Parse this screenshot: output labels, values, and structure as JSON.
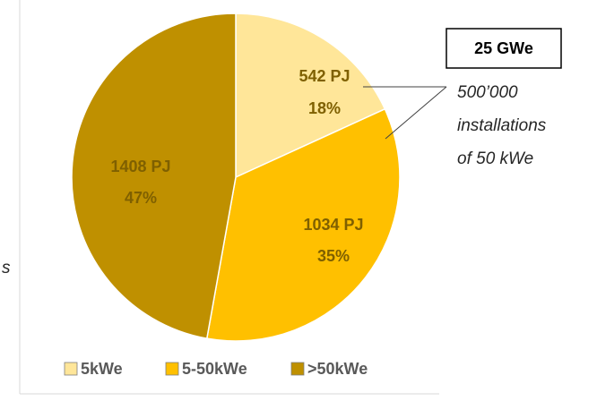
{
  "chart_data": {
    "type": "pie",
    "categories": [
      "5kWe",
      "5-50kWe",
      ">50kWe"
    ],
    "values": [
      542,
      1034,
      1408
    ],
    "value_labels": [
      "542 PJ",
      "1034 PJ",
      "1408 PJ"
    ],
    "percents": [
      18,
      35,
      47
    ],
    "percent_labels": [
      "18%",
      "35%",
      "47%"
    ],
    "colors": [
      "#FFE699",
      "#FFC000",
      "#BF9000"
    ],
    "legend": "bottom",
    "annotations": {
      "box": "25 GWe",
      "lines": [
        "500’000",
        "installations",
        "of 50 kWe"
      ],
      "fragment": "s"
    }
  }
}
